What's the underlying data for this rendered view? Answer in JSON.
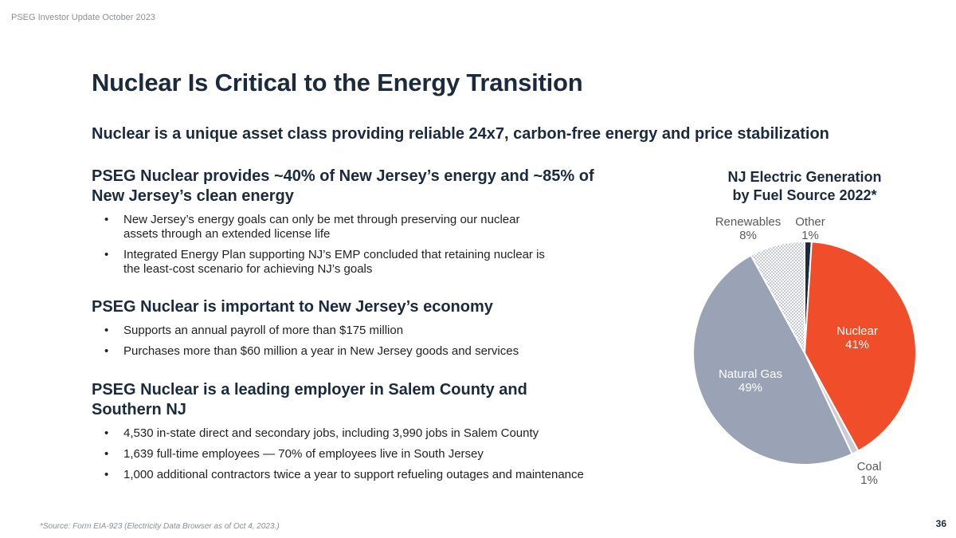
{
  "header_note": "PSEG Investor Update October 2023",
  "title": "Nuclear Is Critical to the Energy Transition",
  "subtitle": "Nuclear is a unique asset class providing reliable 24x7, carbon-free energy and price stabilization",
  "sections": [
    {
      "heading_line1": "PSEG Nuclear provides ~40% of New Jersey’s energy and ~85% of",
      "heading_line2": "New Jersey’s clean energy",
      "bullets": [
        "New Jersey’s energy goals can only be met through preserving our nuclear assets through an extended license life",
        "Integrated Energy Plan supporting NJ’s EMP concluded that retaining nuclear is the least-cost scenario for achieving NJ’s goals"
      ]
    },
    {
      "heading": "PSEG Nuclear is important to New Jersey’s economy",
      "bullets": [
        "Supports an annual payroll of more than $175 million",
        "Purchases more than $60 million a year in New Jersey goods and services"
      ]
    },
    {
      "heading": "PSEG Nuclear is a leading employer in Salem County and Southern NJ",
      "bullets": [
        "4,530 in-state direct and secondary jobs, including 3,990 jobs in Salem County",
        "1,639 full-time employees — 70% of employees live in South Jersey",
        "1,000 additional contractors twice a year to support refueling outages and maintenance"
      ]
    }
  ],
  "chart_data": {
    "type": "pie",
    "title_line1": "NJ Electric Generation",
    "title_line2": "by Fuel Source 2022*",
    "slices": [
      {
        "label": "Other",
        "value": 1,
        "value_label": "1%",
        "color": "#1b2a3d",
        "text_color": "#595959"
      },
      {
        "label": "Nuclear",
        "value": 41,
        "value_label": "41%",
        "color": "#f04e2a",
        "text_color": "#ffffff"
      },
      {
        "label": "Coal",
        "value": 1,
        "value_label": "1%",
        "color": "#c9cdd5",
        "text_color": "#595959"
      },
      {
        "label": "Natural Gas",
        "value": 49,
        "value_label": "49%",
        "color": "#9aa2b5",
        "text_color": "#ffffff"
      },
      {
        "label": "Renewables",
        "value": 8,
        "value_label": "8%",
        "color": "#d4d8e0",
        "text_color": "#595959"
      }
    ]
  },
  "footnote": "*Source: Form EIA-923 (Electricity Data Browser as of Oct 4, 2023.)",
  "page_number": "36"
}
